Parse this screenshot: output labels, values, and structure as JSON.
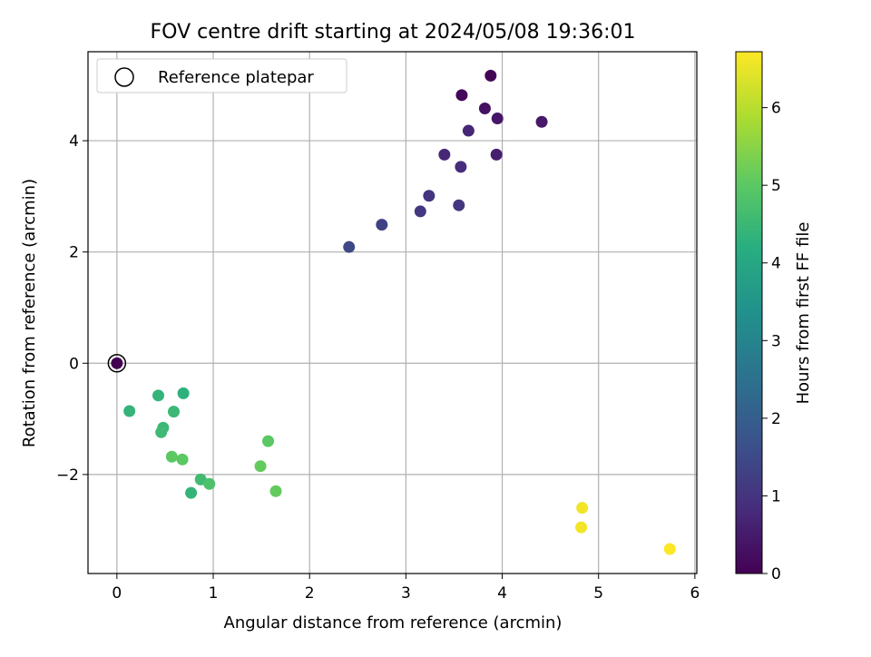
{
  "chart_data": {
    "type": "scatter",
    "title": "FOV centre drift starting at 2024/05/08 19:36:01",
    "xlabel": "Angular distance from reference (arcmin)",
    "ylabel": "Rotation from reference (arcmin)",
    "colorbar_label": "Hours from first FF file",
    "xlim": [
      -0.3,
      6.02
    ],
    "ylim": [
      -3.78,
      5.6
    ],
    "clim": [
      0,
      6.72
    ],
    "x_ticks": [
      0,
      1,
      2,
      3,
      4,
      5,
      6
    ],
    "y_ticks": [
      -2,
      0,
      2,
      4
    ],
    "colorbar_ticks": [
      0,
      1,
      2,
      3,
      4,
      5,
      6
    ],
    "x_tick_labels": [
      "0",
      "1",
      "2",
      "3",
      "4",
      "5",
      "6"
    ],
    "y_tick_labels": [
      "−2",
      "0",
      "2",
      "4"
    ],
    "colorbar_tick_labels": [
      "0",
      "1",
      "2",
      "3",
      "4",
      "5",
      "6"
    ],
    "grid": true,
    "legend_position": "top-left",
    "colormap": "viridis",
    "reference": {
      "name": "Reference platepar",
      "x": 0,
      "y": 0
    },
    "points": [
      {
        "x": 0.0,
        "y": 0.0,
        "c": 0.0
      },
      {
        "x": 3.88,
        "y": 5.17,
        "c": 0.05
      },
      {
        "x": 3.58,
        "y": 4.82,
        "c": 0.1
      },
      {
        "x": 3.82,
        "y": 4.58,
        "c": 0.3
      },
      {
        "x": 3.95,
        "y": 4.4,
        "c": 0.4
      },
      {
        "x": 4.41,
        "y": 4.34,
        "c": 0.45
      },
      {
        "x": 3.94,
        "y": 3.75,
        "c": 0.55
      },
      {
        "x": 3.65,
        "y": 4.18,
        "c": 0.7
      },
      {
        "x": 3.4,
        "y": 3.75,
        "c": 0.75
      },
      {
        "x": 3.57,
        "y": 3.53,
        "c": 0.85
      },
      {
        "x": 3.24,
        "y": 3.01,
        "c": 1.0
      },
      {
        "x": 3.55,
        "y": 2.84,
        "c": 1.05
      },
      {
        "x": 3.15,
        "y": 2.73,
        "c": 1.1
      },
      {
        "x": 2.75,
        "y": 2.49,
        "c": 1.3
      },
      {
        "x": 2.41,
        "y": 2.09,
        "c": 1.45
      },
      {
        "x": 0.69,
        "y": -0.54,
        "c": 4.3
      },
      {
        "x": 0.43,
        "y": -0.58,
        "c": 4.4
      },
      {
        "x": 0.13,
        "y": -0.86,
        "c": 4.4
      },
      {
        "x": 0.59,
        "y": -0.87,
        "c": 4.5
      },
      {
        "x": 0.48,
        "y": -1.16,
        "c": 4.5
      },
      {
        "x": 0.46,
        "y": -1.24,
        "c": 4.55
      },
      {
        "x": 0.77,
        "y": -2.33,
        "c": 4.4
      },
      {
        "x": 0.87,
        "y": -2.09,
        "c": 4.6
      },
      {
        "x": 0.96,
        "y": -2.17,
        "c": 4.8
      },
      {
        "x": 0.57,
        "y": -1.68,
        "c": 5.0
      },
      {
        "x": 0.68,
        "y": -1.73,
        "c": 5.0
      },
      {
        "x": 1.57,
        "y": -1.4,
        "c": 5.0
      },
      {
        "x": 1.49,
        "y": -1.85,
        "c": 5.1
      },
      {
        "x": 1.65,
        "y": -2.3,
        "c": 5.1
      },
      {
        "x": 4.83,
        "y": -2.6,
        "c": 6.6
      },
      {
        "x": 4.82,
        "y": -2.95,
        "c": 6.6
      },
      {
        "x": 5.74,
        "y": -3.34,
        "c": 6.7
      }
    ]
  }
}
